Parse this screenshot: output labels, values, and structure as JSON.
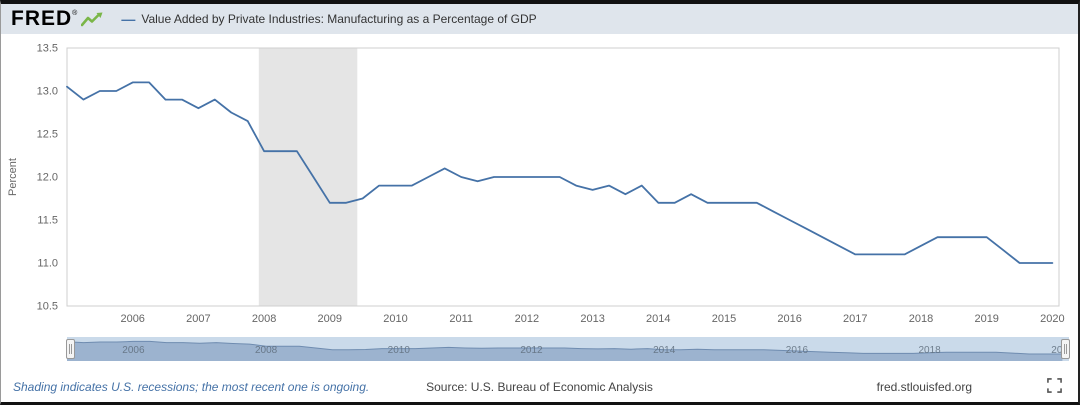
{
  "header": {
    "logo": "FRED",
    "registered": "®",
    "legend": {
      "dash": "—",
      "label": "Value Added by Private Industries: Manufacturing as a Percentage of GDP"
    }
  },
  "footer": {
    "note": "Shading indicates U.S. recessions; the most recent one is ongoing.",
    "source": "Source: U.S. Bureau of Economic Analysis",
    "site": "fred.stlouisfed.org"
  },
  "icons": {
    "fred_logo_graph": "green-line-graph-icon",
    "fullscreen": "fullscreen-expand-icon"
  },
  "chart_data": {
    "type": "line",
    "title": "Value Added by Private Industries: Manufacturing as a Percentage of GDP",
    "xlabel": "",
    "ylabel": "Percent",
    "series_color": "#4572a7",
    "recession_band_color": "#e5e5e5",
    "ylim": [
      10.5,
      13.5
    ],
    "xlim": [
      2005.0,
      2020.1
    ],
    "yticks": [
      10.5,
      11.0,
      11.5,
      12.0,
      12.5,
      13.0,
      13.5
    ],
    "xticks": [
      2006,
      2007,
      2008,
      2009,
      2010,
      2011,
      2012,
      2013,
      2014,
      2015,
      2016,
      2017,
      2018,
      2019,
      2020
    ],
    "recession_bands": [
      [
        2007.92,
        2009.42
      ]
    ],
    "grid": false,
    "legend_position": "top",
    "frequency": "quarterly",
    "x": [
      2005.0,
      2005.25,
      2005.5,
      2005.75,
      2006.0,
      2006.25,
      2006.5,
      2006.75,
      2007.0,
      2007.25,
      2007.5,
      2007.75,
      2008.0,
      2008.25,
      2008.5,
      2008.75,
      2009.0,
      2009.25,
      2009.5,
      2009.75,
      2010.0,
      2010.25,
      2010.5,
      2010.75,
      2011.0,
      2011.25,
      2011.5,
      2011.75,
      2012.0,
      2012.25,
      2012.5,
      2012.75,
      2013.0,
      2013.25,
      2013.5,
      2013.75,
      2014.0,
      2014.25,
      2014.5,
      2014.75,
      2015.0,
      2015.25,
      2015.5,
      2015.75,
      2016.0,
      2016.25,
      2016.5,
      2016.75,
      2017.0,
      2017.25,
      2017.5,
      2017.75,
      2018.0,
      2018.25,
      2018.5,
      2018.75,
      2019.0,
      2019.25,
      2019.5,
      2019.75,
      2020.0
    ],
    "values": [
      13.05,
      12.9,
      13.0,
      13.0,
      13.1,
      13.1,
      12.9,
      12.9,
      12.8,
      12.9,
      12.75,
      12.65,
      12.3,
      12.3,
      12.3,
      12.0,
      11.7,
      11.7,
      11.75,
      11.9,
      11.9,
      11.9,
      12.0,
      12.1,
      12.0,
      11.95,
      12.0,
      12.0,
      12.0,
      12.0,
      12.0,
      11.9,
      11.85,
      11.9,
      11.8,
      11.9,
      11.7,
      11.7,
      11.8,
      11.7,
      11.7,
      11.7,
      11.7,
      11.6,
      11.5,
      11.4,
      11.3,
      11.2,
      11.1,
      11.1,
      11.1,
      11.1,
      11.2,
      11.3,
      11.3,
      11.3,
      11.3,
      11.15,
      11.0,
      11.0,
      11.0
    ],
    "navigator_labels": [
      2006,
      2008,
      2010,
      2012,
      2014,
      2016,
      2018,
      2020
    ]
  }
}
